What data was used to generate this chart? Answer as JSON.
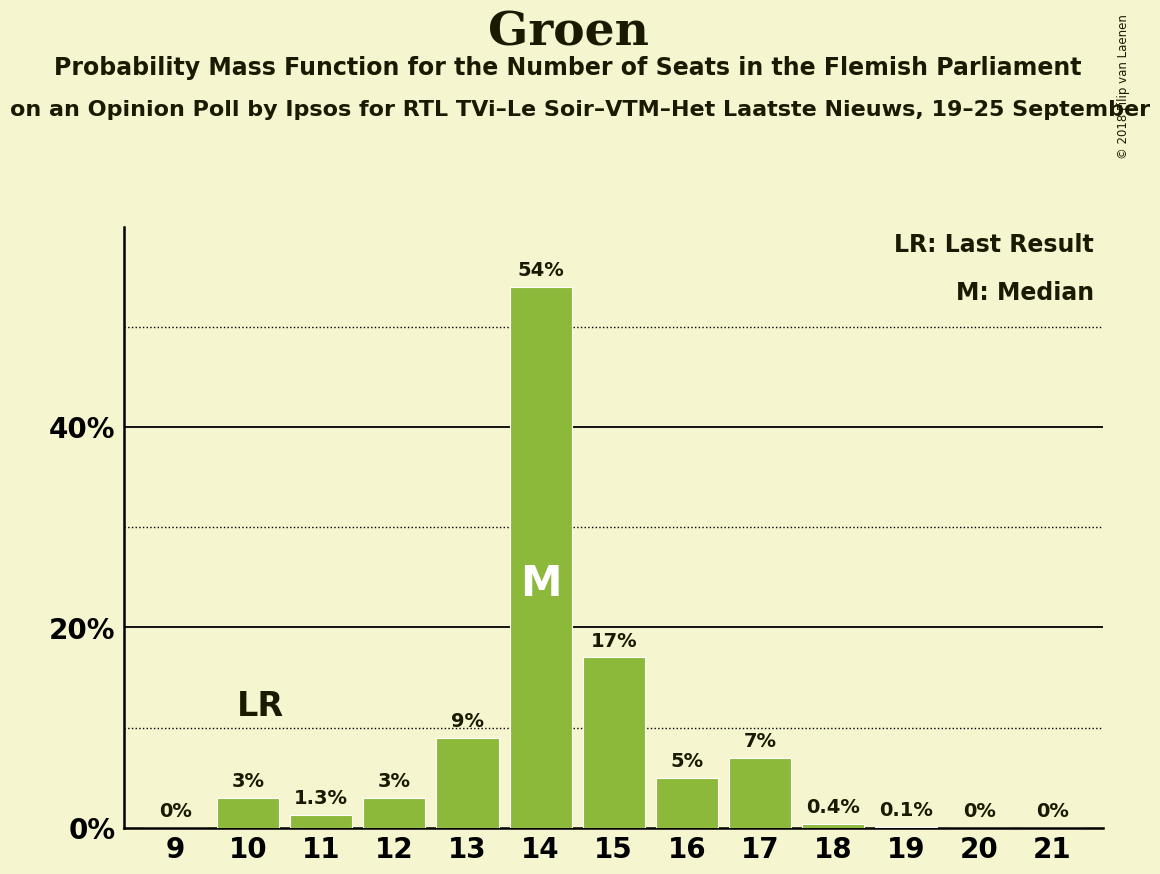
{
  "title": "Groen",
  "subtitle": "Probability Mass Function for the Number of Seats in the Flemish Parliament",
  "subtitle2": "on an Opinion Poll by Ipsos for RTL TVi–Le Soir–VTM–Het Laatste Nieuws, 19–25 September",
  "copyright": "© 2018 Filip van Laenen",
  "seats": [
    9,
    10,
    11,
    12,
    13,
    14,
    15,
    16,
    17,
    18,
    19,
    20,
    21
  ],
  "probabilities": [
    0.0,
    3.0,
    1.3,
    3.0,
    9.0,
    54.0,
    17.0,
    5.0,
    7.0,
    0.4,
    0.1,
    0.0,
    0.0
  ],
  "bar_labels": [
    "0%",
    "3%",
    "1.3%",
    "3%",
    "9%",
    "54%",
    "17%",
    "5%",
    "7%",
    "0.4%",
    "0.1%",
    "0%",
    "0%"
  ],
  "bar_color": "#8db93a",
  "background_color": "#f5f5d0",
  "text_color": "#1a1a00",
  "lr_seat": 10,
  "median_seat": 14,
  "yticks": [
    0,
    20,
    40
  ],
  "yticks_dotted": [
    10,
    30,
    50
  ],
  "ylim": [
    0,
    60
  ],
  "legend_lr": "LR: Last Result",
  "legend_m": "M: Median",
  "title_fontsize": 34,
  "subtitle_fontsize": 17,
  "subtitle2_fontsize": 16,
  "ytick_fontsize": 20,
  "xtick_fontsize": 20,
  "bar_label_fontsize": 14,
  "legend_fontsize": 17,
  "lr_fontsize": 24,
  "m_fontsize": 30
}
